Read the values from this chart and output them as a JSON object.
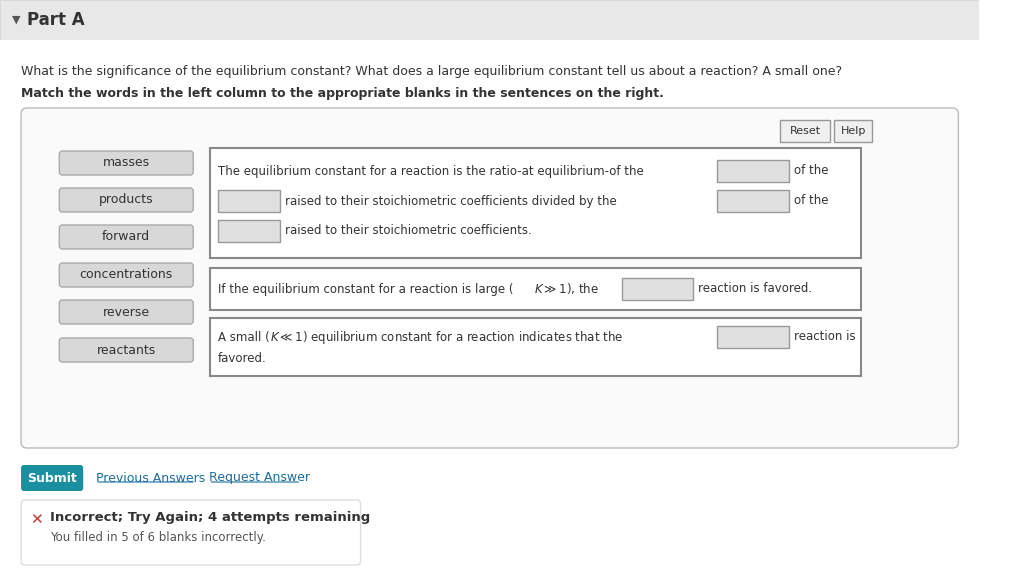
{
  "bg_color": "#f0f0f0",
  "white": "#ffffff",
  "card_bg": "#f8f8f8",
  "border_color": "#cccccc",
  "dark_border": "#999999",
  "teal": "#1a8fa0",
  "title_text": "Part A",
  "question_text": "What is the significance of the equilibrium constant? What does a large equilibrium constant tell us about a reaction? A small one?",
  "instruction_text": "Match the words in the left column to the appropriate blanks in the sentences on the right.",
  "left_words": [
    "masses",
    "products",
    "forward",
    "concentrations",
    "reverse",
    "reactants"
  ],
  "sentence1": "The equilibrium constant for a reaction is the ratio-at equilibrium-of the",
  "sentence1b": "of the",
  "sentence2a": "raised to their stoichiometric coefficients divided by the",
  "sentence2b": "of the",
  "sentence3": "raised to their stoichiometric coefficients.",
  "sentence4a": "If the equilibrium constant for a reaction is large (",
  "sentence4b": "1), the",
  "sentence4c": "reaction is favored.",
  "sentence5a": "A small (",
  "sentence5b": "1) equilibrium constant for a reaction indicates that the",
  "sentence5c": "reaction is",
  "sentence5d": "favored.",
  "submit_color": "#1a8fa0",
  "error_color": "#cc3333",
  "link_color": "#1a6ea0",
  "text_color": "#333333",
  "light_gray_btn": "#d8d8d8",
  "btn_border": "#aaaaaa"
}
